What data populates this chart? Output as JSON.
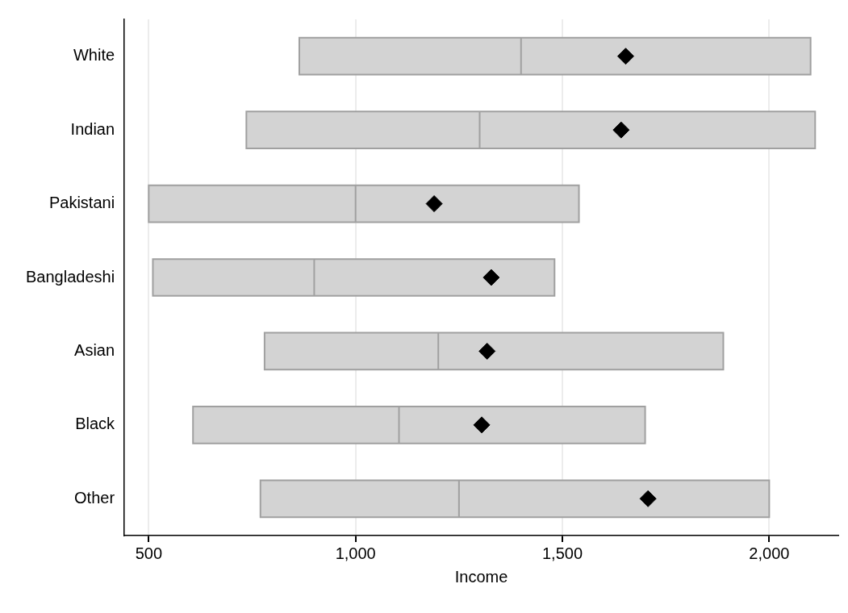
{
  "chart_data": {
    "type": "box",
    "orientation": "horizontal",
    "xlabel": "Income",
    "color": "#d3d3d3",
    "marker": "diamond",
    "grid": "x",
    "categories": [
      "White",
      "Indian",
      "Pakistani",
      "Bangladeshi",
      "Asian",
      "Black",
      "Other"
    ],
    "boxes": [
      {
        "low": 864,
        "q1": 864,
        "median": 1400,
        "q3": 2100,
        "high": 2100,
        "mean": 1653
      },
      {
        "low": 736,
        "q1": 736,
        "median": 1300,
        "q3": 2111,
        "high": 2111,
        "mean": 1642
      },
      {
        "low": 500,
        "q1": 500,
        "median": 1000,
        "q3": 1540,
        "high": 1540,
        "mean": 1190
      },
      {
        "low": 510,
        "q1": 510,
        "median": 900,
        "q3": 1481,
        "high": 1481,
        "mean": 1328
      },
      {
        "low": 780,
        "q1": 780,
        "median": 1200,
        "q3": 1889,
        "high": 1889,
        "mean": 1318
      },
      {
        "low": 607,
        "q1": 607,
        "median": 1105,
        "q3": 1700,
        "high": 1700,
        "mean": 1305
      },
      {
        "low": 770,
        "q1": 770,
        "median": 1250,
        "q3": 2000,
        "high": 2000,
        "mean": 1707
      }
    ],
    "xlim": [
      441,
      2167
    ],
    "xticks": [
      {
        "value": 500,
        "label": "500"
      },
      {
        "value": 1000,
        "label": "1,000"
      },
      {
        "value": 1500,
        "label": "1,500"
      },
      {
        "value": 2000,
        "label": "2,000"
      }
    ]
  }
}
